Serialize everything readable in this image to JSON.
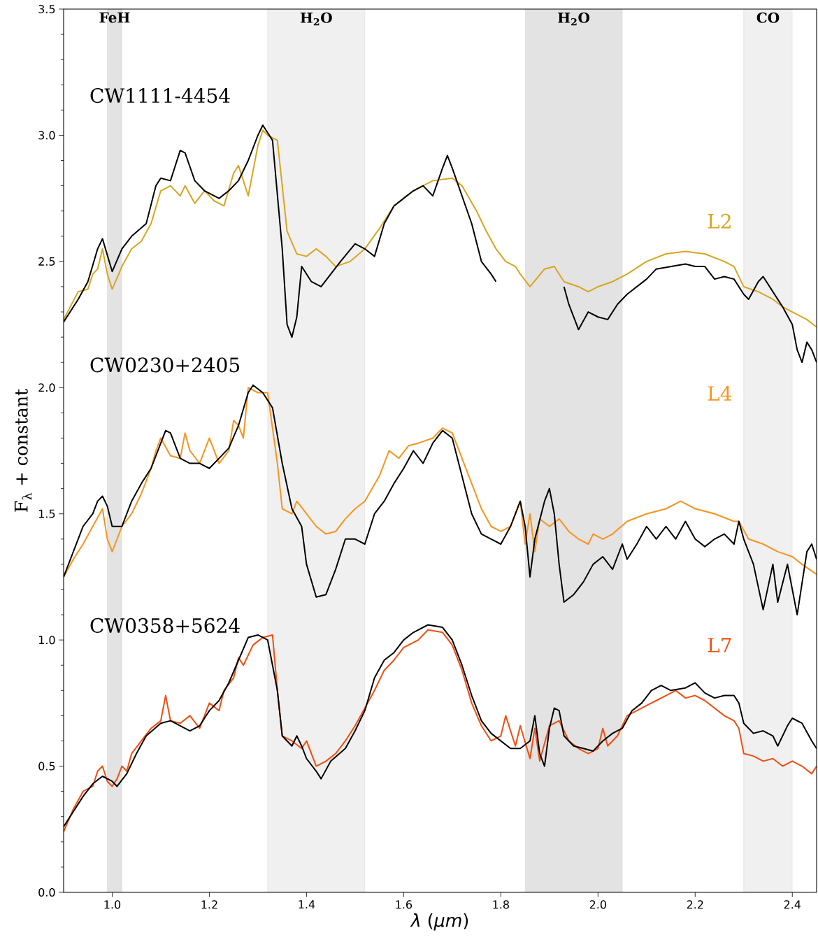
{
  "chart_data": {
    "type": "line",
    "xlabel": "*λ* (*μm*)",
    "ylabel": "F$_{λ}$ + constant",
    "legend": "left",
    "xlim": [
      0.9,
      2.45
    ],
    "ylim": [
      0.0,
      3.5
    ],
    "xticks": [
      {
        "value": 1.0,
        "label": "1.0"
      },
      {
        "value": 1.2,
        "label": "1.2"
      },
      {
        "value": 1.4,
        "label": "1.4"
      },
      {
        "value": 1.6,
        "label": "1.6"
      },
      {
        "value": 1.8,
        "label": "1.8"
      },
      {
        "value": 2.0,
        "label": "2.0"
      },
      {
        "value": 2.2,
        "label": "2.2"
      },
      {
        "value": 2.4,
        "label": "2.4"
      }
    ],
    "yticks": [
      {
        "value": 0.0,
        "label": "0.0"
      },
      {
        "value": 0.5,
        "label": "0.5"
      },
      {
        "value": 1.0,
        "label": "1.0"
      },
      {
        "value": 1.5,
        "label": "1.5"
      },
      {
        "value": 2.0,
        "label": "2.0"
      },
      {
        "value": 2.5,
        "label": "2.5"
      },
      {
        "value": 3.0,
        "label": "3.0"
      },
      {
        "value": 3.5,
        "label": "3.5"
      }
    ],
    "bands": [
      {
        "axis": "x",
        "from": 0.99,
        "to": 1.02,
        "label": "FeH",
        "color": "#e3e3e3"
      },
      {
        "axis": "x",
        "from": 1.32,
        "to": 1.52,
        "label": "H$_{2}$O",
        "color": "#f0f0f0"
      },
      {
        "axis": "x",
        "from": 1.85,
        "to": 2.05,
        "label": "H$_{2}$O",
        "color": "#e3e3e3"
      },
      {
        "axis": "x",
        "from": 2.3,
        "to": 2.4,
        "label": "CO",
        "color": "#f0f0f0"
      }
    ],
    "series": [
      {
        "name": "L2",
        "color": "#d9a520",
        "x": [
          0.9,
          0.93,
          0.95,
          0.96,
          0.97,
          0.98,
          0.99,
          1.0,
          1.02,
          1.04,
          1.06,
          1.08,
          1.1,
          1.12,
          1.14,
          1.15,
          1.17,
          1.19,
          1.21,
          1.23,
          1.25,
          1.26,
          1.28,
          1.3,
          1.31,
          1.32,
          1.34,
          1.35,
          1.36,
          1.38,
          1.4,
          1.42,
          1.44,
          1.46,
          1.49,
          1.52,
          1.55,
          1.58,
          1.62,
          1.66,
          1.7,
          1.72,
          1.75,
          1.77,
          1.79,
          1.81,
          1.83,
          1.84,
          1.86,
          1.89,
          1.91,
          1.93,
          1.96,
          1.98,
          2.0,
          2.03,
          2.06,
          2.1,
          2.14,
          2.18,
          2.22,
          2.26,
          2.28,
          2.3,
          2.33,
          2.36,
          2.38,
          2.4,
          2.43,
          2.45
        ],
        "values": [
          2.27,
          2.38,
          2.39,
          2.45,
          2.47,
          2.55,
          2.45,
          2.39,
          2.48,
          2.55,
          2.58,
          2.65,
          2.78,
          2.8,
          2.76,
          2.8,
          2.73,
          2.78,
          2.74,
          2.72,
          2.85,
          2.88,
          2.76,
          2.96,
          3.02,
          3.0,
          2.98,
          2.8,
          2.62,
          2.53,
          2.52,
          2.55,
          2.52,
          2.48,
          2.5,
          2.55,
          2.63,
          2.72,
          2.78,
          2.82,
          2.83,
          2.8,
          2.7,
          2.62,
          2.55,
          2.5,
          2.48,
          2.45,
          2.4,
          2.47,
          2.48,
          2.42,
          2.4,
          2.38,
          2.4,
          2.42,
          2.45,
          2.5,
          2.53,
          2.54,
          2.53,
          2.5,
          2.48,
          2.4,
          2.38,
          2.35,
          2.32,
          2.3,
          2.27,
          2.24
        ]
      },
      {
        "name": "CW1111-4454",
        "color": "#000000",
        "x": [
          0.9,
          0.93,
          0.95,
          0.97,
          0.98,
          1.0,
          1.02,
          1.04,
          1.07,
          1.09,
          1.1,
          1.12,
          1.14,
          1.15,
          1.17,
          1.19,
          1.22,
          1.24,
          1.26,
          1.28,
          1.3,
          1.31,
          1.33,
          1.35,
          1.36,
          1.37,
          1.38,
          1.39,
          1.41,
          1.43,
          1.45,
          1.47,
          1.5,
          1.52,
          1.54,
          1.56,
          1.58,
          1.6,
          1.62,
          1.64,
          1.66,
          1.68,
          1.69,
          1.7,
          1.72,
          1.74,
          1.76,
          1.78,
          1.79,
          1.85,
          1.93,
          1.94,
          1.96,
          1.98,
          2.0,
          2.02,
          2.04,
          2.06,
          2.08,
          2.1,
          2.12,
          2.15,
          2.18,
          2.2,
          2.22,
          2.24,
          2.26,
          2.28,
          2.3,
          2.31,
          2.33,
          2.34,
          2.36,
          2.38,
          2.4,
          2.41,
          2.42,
          2.43,
          2.44,
          2.45
        ],
        "values": [
          2.26,
          2.35,
          2.42,
          2.55,
          2.59,
          2.46,
          2.55,
          2.6,
          2.65,
          2.8,
          2.83,
          2.82,
          2.94,
          2.93,
          2.82,
          2.78,
          2.75,
          2.78,
          2.82,
          2.9,
          3.0,
          3.04,
          2.98,
          2.55,
          2.25,
          2.2,
          2.28,
          2.48,
          2.42,
          2.4,
          2.45,
          2.5,
          2.57,
          2.55,
          2.52,
          2.65,
          2.72,
          2.75,
          2.78,
          2.8,
          2.76,
          2.87,
          2.92,
          2.87,
          2.76,
          2.65,
          2.5,
          2.45,
          2.42,
          null,
          2.4,
          2.33,
          2.23,
          2.3,
          2.28,
          2.27,
          2.33,
          2.37,
          2.4,
          2.43,
          2.47,
          2.48,
          2.49,
          2.48,
          2.48,
          2.43,
          2.44,
          2.43,
          2.37,
          2.35,
          2.42,
          2.44,
          2.38,
          2.32,
          2.25,
          2.15,
          2.1,
          2.18,
          2.15,
          2.1
        ]
      },
      {
        "name": "L4",
        "color": "#f7941d",
        "x": [
          0.9,
          0.92,
          0.94,
          0.96,
          0.98,
          0.99,
          1.0,
          1.02,
          1.04,
          1.06,
          1.08,
          1.09,
          1.1,
          1.12,
          1.14,
          1.15,
          1.16,
          1.18,
          1.2,
          1.22,
          1.24,
          1.25,
          1.26,
          1.27,
          1.28,
          1.3,
          1.32,
          1.34,
          1.35,
          1.37,
          1.38,
          1.4,
          1.42,
          1.44,
          1.46,
          1.48,
          1.5,
          1.52,
          1.55,
          1.57,
          1.59,
          1.61,
          1.63,
          1.66,
          1.68,
          1.7,
          1.72,
          1.74,
          1.76,
          1.78,
          1.8,
          1.82,
          1.83,
          1.84,
          1.85,
          1.86,
          1.87,
          1.88,
          1.9,
          1.92,
          1.94,
          1.96,
          1.98,
          1.99,
          2.01,
          2.03,
          2.06,
          2.1,
          2.14,
          2.17,
          2.2,
          2.24,
          2.28,
          2.29,
          2.31,
          2.34,
          2.37,
          2.4,
          2.42,
          2.45
        ],
        "values": [
          1.25,
          1.32,
          1.38,
          1.45,
          1.52,
          1.4,
          1.35,
          1.45,
          1.5,
          1.58,
          1.68,
          1.75,
          1.8,
          1.73,
          1.72,
          1.82,
          1.75,
          1.7,
          1.8,
          1.7,
          1.75,
          1.87,
          1.85,
          1.8,
          2.0,
          1.98,
          1.98,
          1.7,
          1.52,
          1.5,
          1.55,
          1.5,
          1.45,
          1.42,
          1.43,
          1.48,
          1.52,
          1.55,
          1.65,
          1.75,
          1.72,
          1.77,
          1.78,
          1.8,
          1.84,
          1.82,
          1.72,
          1.62,
          1.52,
          1.45,
          1.43,
          1.45,
          1.5,
          1.55,
          1.38,
          1.5,
          1.35,
          1.48,
          1.45,
          1.48,
          1.43,
          1.4,
          1.38,
          1.42,
          1.4,
          1.42,
          1.47,
          1.5,
          1.52,
          1.55,
          1.52,
          1.5,
          1.47,
          1.47,
          1.4,
          1.38,
          1.35,
          1.33,
          1.3,
          1.26
        ]
      },
      {
        "name": "CW0230+2405",
        "color": "#000000",
        "x": [
          0.9,
          0.92,
          0.94,
          0.96,
          0.97,
          0.98,
          0.99,
          1.0,
          1.02,
          1.04,
          1.06,
          1.08,
          1.1,
          1.11,
          1.12,
          1.14,
          1.16,
          1.18,
          1.2,
          1.22,
          1.24,
          1.26,
          1.28,
          1.29,
          1.31,
          1.33,
          1.35,
          1.37,
          1.39,
          1.4,
          1.42,
          1.44,
          1.46,
          1.48,
          1.5,
          1.52,
          1.54,
          1.56,
          1.58,
          1.6,
          1.62,
          1.64,
          1.66,
          1.68,
          1.7,
          1.72,
          1.74,
          1.76,
          1.78,
          1.8,
          1.82,
          1.84,
          1.85,
          1.86,
          1.87,
          1.89,
          1.9,
          1.91,
          1.92,
          1.93,
          1.95,
          1.97,
          1.99,
          2.01,
          2.03,
          2.05,
          2.06,
          2.08,
          2.1,
          2.12,
          2.14,
          2.16,
          2.18,
          2.2,
          2.22,
          2.24,
          2.26,
          2.28,
          2.29,
          2.3,
          2.32,
          2.34,
          2.36,
          2.37,
          2.39,
          2.41,
          2.43,
          2.44,
          2.45
        ],
        "values": [
          1.25,
          1.35,
          1.45,
          1.5,
          1.55,
          1.57,
          1.53,
          1.45,
          1.45,
          1.55,
          1.62,
          1.68,
          1.78,
          1.83,
          1.82,
          1.72,
          1.7,
          1.7,
          1.68,
          1.72,
          1.76,
          1.85,
          1.98,
          2.01,
          1.98,
          1.92,
          1.7,
          1.52,
          1.45,
          1.3,
          1.17,
          1.18,
          1.28,
          1.4,
          1.4,
          1.38,
          1.5,
          1.55,
          1.62,
          1.68,
          1.75,
          1.7,
          1.78,
          1.83,
          1.8,
          1.65,
          1.5,
          1.42,
          1.4,
          1.38,
          1.45,
          1.55,
          1.45,
          1.25,
          1.4,
          1.55,
          1.6,
          1.5,
          1.3,
          1.15,
          1.18,
          1.23,
          1.3,
          1.33,
          1.28,
          1.38,
          1.32,
          1.38,
          1.45,
          1.4,
          1.45,
          1.4,
          1.47,
          1.4,
          1.37,
          1.4,
          1.42,
          1.38,
          1.47,
          1.4,
          1.3,
          1.12,
          1.3,
          1.15,
          1.3,
          1.1,
          1.35,
          1.38,
          1.32
        ]
      },
      {
        "name": "L7",
        "color": "#f04e0f",
        "x": [
          0.9,
          0.92,
          0.94,
          0.96,
          0.97,
          0.98,
          0.99,
          1.0,
          1.01,
          1.02,
          1.03,
          1.04,
          1.06,
          1.08,
          1.1,
          1.11,
          1.12,
          1.14,
          1.16,
          1.18,
          1.2,
          1.22,
          1.23,
          1.25,
          1.26,
          1.27,
          1.29,
          1.31,
          1.33,
          1.34,
          1.35,
          1.37,
          1.39,
          1.4,
          1.41,
          1.42,
          1.44,
          1.46,
          1.48,
          1.5,
          1.52,
          1.54,
          1.56,
          1.58,
          1.6,
          1.63,
          1.65,
          1.68,
          1.7,
          1.72,
          1.74,
          1.76,
          1.78,
          1.8,
          1.81,
          1.83,
          1.84,
          1.86,
          1.87,
          1.88,
          1.9,
          1.92,
          1.94,
          1.96,
          1.98,
          2.0,
          2.01,
          2.02,
          2.04,
          2.06,
          2.08,
          2.1,
          2.12,
          2.14,
          2.16,
          2.18,
          2.2,
          2.22,
          2.24,
          2.26,
          2.28,
          2.29,
          2.3,
          2.32,
          2.34,
          2.36,
          2.38,
          2.4,
          2.42,
          2.44,
          2.45
        ],
        "values": [
          0.24,
          0.33,
          0.4,
          0.42,
          0.48,
          0.5,
          0.44,
          0.42,
          0.45,
          0.5,
          0.48,
          0.55,
          0.6,
          0.65,
          0.68,
          0.78,
          0.68,
          0.67,
          0.7,
          0.65,
          0.75,
          0.72,
          0.8,
          0.85,
          0.93,
          0.9,
          0.98,
          1.01,
          1.02,
          0.8,
          0.62,
          0.6,
          0.57,
          0.6,
          0.55,
          0.5,
          0.52,
          0.55,
          0.6,
          0.66,
          0.73,
          0.8,
          0.88,
          0.92,
          0.97,
          1.0,
          1.04,
          1.03,
          0.98,
          0.88,
          0.75,
          0.66,
          0.6,
          0.62,
          0.7,
          0.58,
          0.66,
          0.53,
          0.65,
          0.52,
          0.66,
          0.68,
          0.6,
          0.57,
          0.55,
          0.57,
          0.65,
          0.58,
          0.62,
          0.7,
          0.72,
          0.74,
          0.76,
          0.78,
          0.8,
          0.77,
          0.78,
          0.76,
          0.73,
          0.7,
          0.68,
          0.65,
          0.55,
          0.54,
          0.52,
          0.53,
          0.5,
          0.52,
          0.5,
          0.47,
          0.5
        ]
      },
      {
        "name": "CW0358+5624",
        "color": "#000000",
        "x": [
          0.9,
          0.92,
          0.94,
          0.96,
          0.98,
          1.0,
          1.01,
          1.03,
          1.05,
          1.07,
          1.1,
          1.12,
          1.14,
          1.16,
          1.18,
          1.2,
          1.22,
          1.24,
          1.26,
          1.28,
          1.3,
          1.32,
          1.34,
          1.35,
          1.37,
          1.38,
          1.39,
          1.4,
          1.42,
          1.43,
          1.45,
          1.48,
          1.5,
          1.52,
          1.54,
          1.56,
          1.58,
          1.6,
          1.62,
          1.65,
          1.68,
          1.7,
          1.72,
          1.74,
          1.76,
          1.78,
          1.8,
          1.82,
          1.84,
          1.86,
          1.87,
          1.88,
          1.89,
          1.9,
          1.91,
          1.92,
          1.93,
          1.95,
          1.97,
          1.99,
          2.01,
          2.03,
          2.05,
          2.07,
          2.09,
          2.11,
          2.13,
          2.15,
          2.18,
          2.2,
          2.22,
          2.24,
          2.26,
          2.28,
          2.29,
          2.3,
          2.32,
          2.34,
          2.36,
          2.37,
          2.39,
          2.4,
          2.42,
          2.44,
          2.45
        ],
        "values": [
          0.26,
          0.32,
          0.38,
          0.43,
          0.46,
          0.44,
          0.42,
          0.47,
          0.55,
          0.62,
          0.67,
          0.68,
          0.66,
          0.64,
          0.66,
          0.72,
          0.76,
          0.83,
          0.92,
          1.01,
          1.02,
          1.0,
          0.8,
          0.62,
          0.58,
          0.62,
          0.58,
          0.53,
          0.48,
          0.45,
          0.52,
          0.57,
          0.64,
          0.72,
          0.85,
          0.92,
          0.95,
          1.0,
          1.03,
          1.06,
          1.05,
          1.0,
          0.9,
          0.78,
          0.68,
          0.63,
          0.6,
          0.57,
          0.57,
          0.6,
          0.7,
          0.55,
          0.5,
          0.65,
          0.73,
          0.72,
          0.62,
          0.58,
          0.57,
          0.56,
          0.6,
          0.63,
          0.65,
          0.72,
          0.75,
          0.8,
          0.82,
          0.8,
          0.81,
          0.83,
          0.79,
          0.77,
          0.78,
          0.78,
          0.75,
          0.67,
          0.63,
          0.64,
          0.62,
          0.58,
          0.66,
          0.69,
          0.67,
          0.6,
          0.57
        ]
      }
    ]
  }
}
